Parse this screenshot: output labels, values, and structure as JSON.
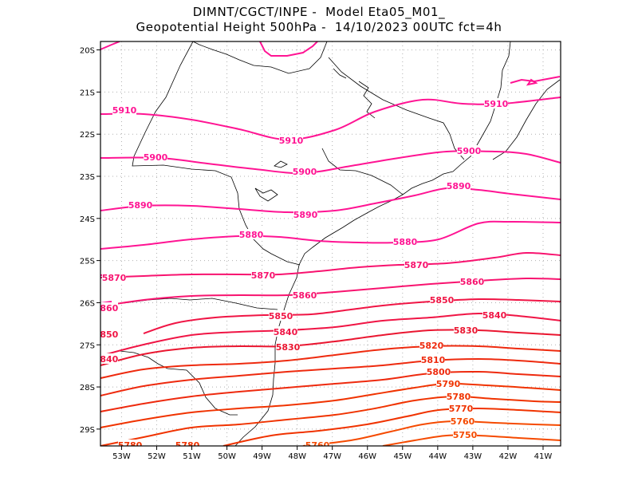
{
  "title": {
    "line1": "DIMNT/CGCT/INPE -  Model Eta05_M01_",
    "line2": "Geopotential Height 500hPa -  14/10/2023 00UTC fct=4h"
  },
  "map": {
    "lon_range": [
      -53.6,
      -40.5
    ],
    "lat_range": [
      -29.4,
      -19.8
    ],
    "lon_ticks": [
      {
        "value": -53,
        "label": "53W"
      },
      {
        "value": -52,
        "label": "52W"
      },
      {
        "value": -51,
        "label": "51W"
      },
      {
        "value": -50,
        "label": "50W"
      },
      {
        "value": -49,
        "label": "49W"
      },
      {
        "value": -48,
        "label": "48W"
      },
      {
        "value": -47,
        "label": "47W"
      },
      {
        "value": -46,
        "label": "46W"
      },
      {
        "value": -45,
        "label": "45W"
      },
      {
        "value": -44,
        "label": "44W"
      },
      {
        "value": -43,
        "label": "43W"
      },
      {
        "value": -42,
        "label": "42W"
      },
      {
        "value": -41,
        "label": "41W"
      }
    ],
    "lat_ticks": [
      {
        "value": -20,
        "label": "20S"
      },
      {
        "value": -21,
        "label": "21S"
      },
      {
        "value": -22,
        "label": "22S"
      },
      {
        "value": -23,
        "label": "23S"
      },
      {
        "value": -24,
        "label": "24S"
      },
      {
        "value": -25,
        "label": "25S"
      },
      {
        "value": -26,
        "label": "26S"
      },
      {
        "value": -27,
        "label": "27S"
      },
      {
        "value": -28,
        "label": "28S"
      },
      {
        "value": -29,
        "label": "29S"
      }
    ],
    "grid": "dotted",
    "contour_levels": [
      {
        "label": "5910",
        "color": "#ff1493"
      },
      {
        "label": "5900",
        "color": "#ff1493"
      },
      {
        "label": "5890",
        "color": "#ff1493"
      },
      {
        "label": "5880",
        "color": "#ff1493"
      },
      {
        "label": "5870",
        "color": "#f8136f"
      },
      {
        "label": "5860",
        "color": "#f8136f"
      },
      {
        "label": "5850",
        "color": "#f01545"
      },
      {
        "label": "5840",
        "color": "#f01545"
      },
      {
        "label": "5830",
        "color": "#ea1630"
      },
      {
        "label": "5820",
        "color": "#ee2a0e"
      },
      {
        "label": "5810",
        "color": "#ee2a0e"
      },
      {
        "label": "5800",
        "color": "#ee2a0e"
      },
      {
        "label": "5790",
        "color": "#f03300"
      },
      {
        "label": "5780",
        "color": "#f03300"
      },
      {
        "label": "5770",
        "color": "#f03300"
      },
      {
        "label": "5760",
        "color": "#f54a00"
      },
      {
        "label": "5750",
        "color": "#f54a00"
      }
    ]
  }
}
